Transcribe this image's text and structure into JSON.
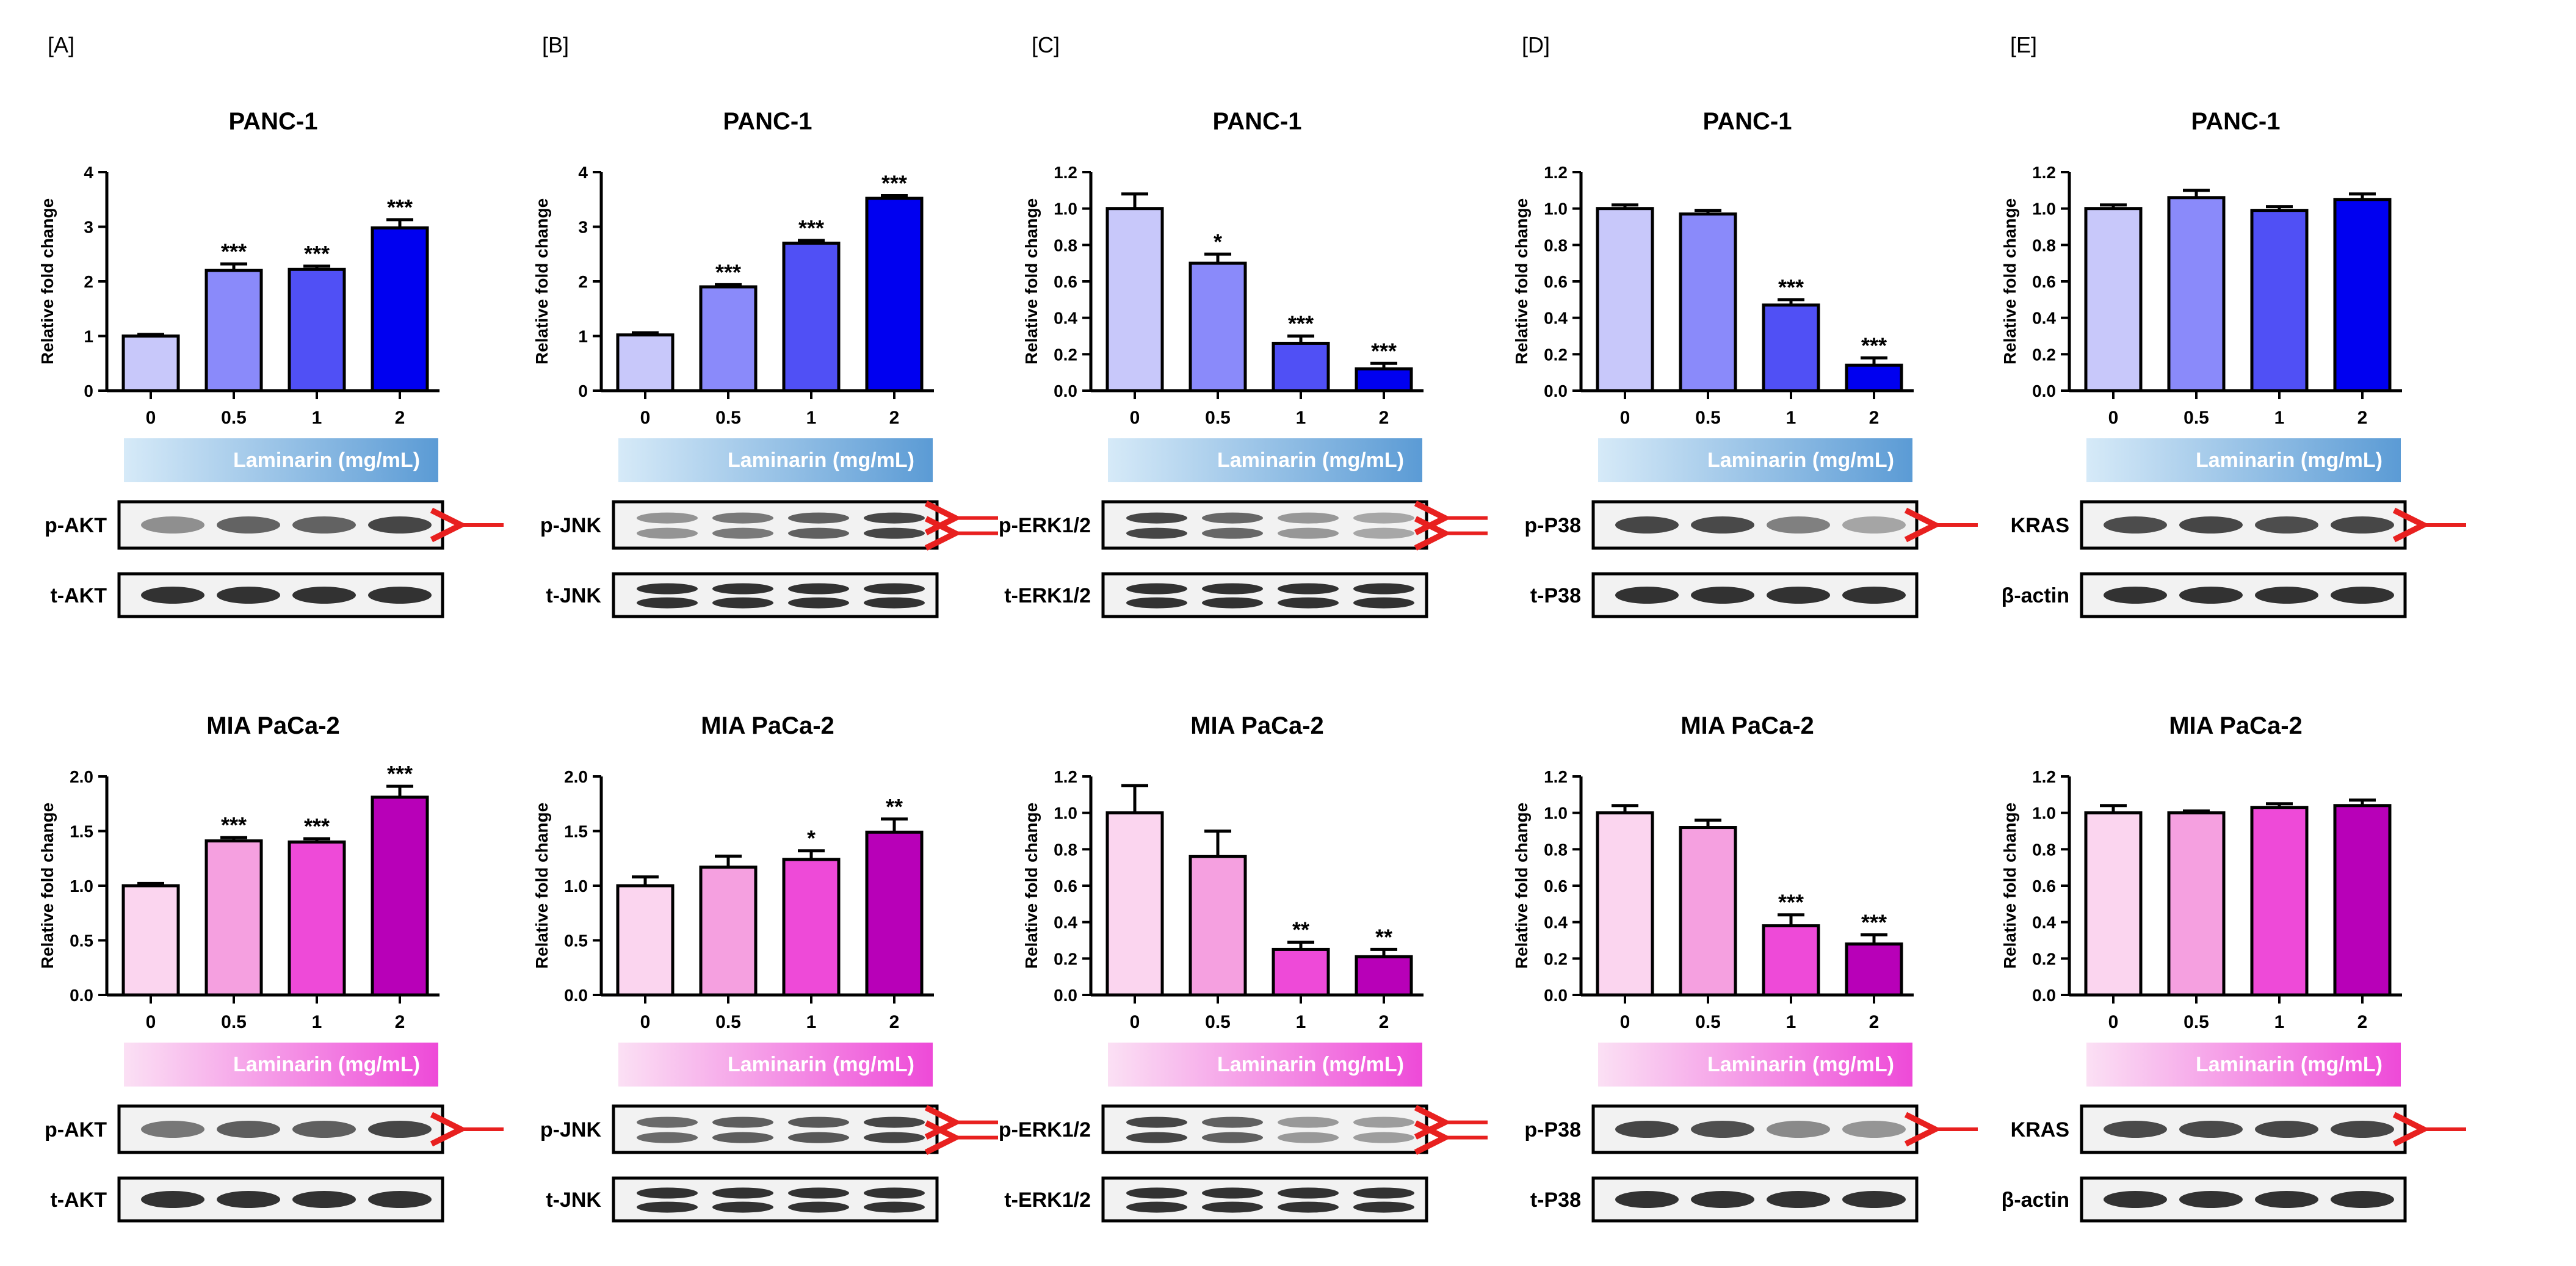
{
  "chart_data": [
    {
      "type": "bar",
      "panel": "[A]",
      "title": "PANC-1",
      "ylabel": "Relative fold change",
      "xlabel": "",
      "categories": [
        "0",
        "0.5",
        "1",
        "2"
      ],
      "values": [
        1.0,
        2.2,
        2.22,
        2.98
      ],
      "errors": [
        0.03,
        0.12,
        0.06,
        0.15
      ],
      "significance": [
        "",
        "***",
        "***",
        "***"
      ],
      "ylim": [
        0,
        4
      ],
      "yticks": [
        "0",
        "1",
        "2",
        "3",
        "4"
      ],
      "colors": [
        "#c8c8fa",
        "#8a8afa",
        "#5050f5",
        "#0000f0"
      ],
      "treatment_label": "Laminarin (mg/mL)",
      "treatment_colors": [
        "#d6eaf8",
        "#5b9bd5"
      ],
      "blots": [
        {
          "label": "p-AKT",
          "bands": "single",
          "arrows": 1
        },
        {
          "label": "t-AKT",
          "bands": "single",
          "arrows": 0
        }
      ]
    },
    {
      "type": "bar",
      "panel": "[B]",
      "title": "PANC-1",
      "ylabel": "Relative fold change",
      "xlabel": "",
      "categories": [
        "0",
        "0.5",
        "1",
        "2"
      ],
      "values": [
        1.02,
        1.9,
        2.7,
        3.52
      ],
      "errors": [
        0.04,
        0.04,
        0.05,
        0.05
      ],
      "significance": [
        "",
        "***",
        "***",
        "***"
      ],
      "ylim": [
        0,
        4
      ],
      "yticks": [
        "0",
        "1",
        "2",
        "3",
        "4"
      ],
      "colors": [
        "#c8c8fa",
        "#8a8afa",
        "#5050f5",
        "#0000f0"
      ],
      "treatment_label": "Laminarin (mg/mL)",
      "treatment_colors": [
        "#d6eaf8",
        "#5b9bd5"
      ],
      "blots": [
        {
          "label": "p-JNK",
          "bands": "double",
          "arrows": 2
        },
        {
          "label": "t-JNK",
          "bands": "double",
          "arrows": 0
        }
      ]
    },
    {
      "type": "bar",
      "panel": "[C]",
      "title": "PANC-1",
      "ylabel": "Relative fold change",
      "xlabel": "",
      "categories": [
        "0",
        "0.5",
        "1",
        "2"
      ],
      "values": [
        1.0,
        0.7,
        0.26,
        0.12
      ],
      "errors": [
        0.08,
        0.05,
        0.04,
        0.03
      ],
      "significance": [
        "",
        "*",
        "***",
        "***"
      ],
      "ylim": [
        0,
        1.2
      ],
      "yticks": [
        "0.0",
        "0.2",
        "0.4",
        "0.6",
        "0.8",
        "1.0",
        "1.2"
      ],
      "colors": [
        "#c8c8fa",
        "#8a8afa",
        "#5050f5",
        "#0000f0"
      ],
      "treatment_label": "Laminarin (mg/mL)",
      "treatment_colors": [
        "#d6eaf8",
        "#5b9bd5"
      ],
      "blots": [
        {
          "label": "p-ERK1/2",
          "bands": "double",
          "arrows": 2
        },
        {
          "label": "t-ERK1/2",
          "bands": "double",
          "arrows": 0
        }
      ]
    },
    {
      "type": "bar",
      "panel": "[D]",
      "title": "PANC-1",
      "ylabel": "Relative fold change",
      "xlabel": "",
      "categories": [
        "0",
        "0.5",
        "1",
        "2"
      ],
      "values": [
        1.0,
        0.97,
        0.47,
        0.14
      ],
      "errors": [
        0.02,
        0.02,
        0.03,
        0.04
      ],
      "significance": [
        "",
        "",
        "***",
        "***"
      ],
      "ylim": [
        0,
        1.2
      ],
      "yticks": [
        "0.0",
        "0.2",
        "0.4",
        "0.6",
        "0.8",
        "1.0",
        "1.2"
      ],
      "colors": [
        "#c8c8fa",
        "#8a8afa",
        "#5050f5",
        "#0000f0"
      ],
      "treatment_label": "Laminarin (mg/mL)",
      "treatment_colors": [
        "#d6eaf8",
        "#5b9bd5"
      ],
      "blots": [
        {
          "label": "p-P38",
          "bands": "single",
          "arrows": 1
        },
        {
          "label": "t-P38",
          "bands": "single",
          "arrows": 0
        }
      ]
    },
    {
      "type": "bar",
      "panel": "[E]",
      "title": "PANC-1",
      "ylabel": "Relative fold change",
      "xlabel": "",
      "categories": [
        "0",
        "0.5",
        "1",
        "2"
      ],
      "values": [
        1.0,
        1.06,
        0.99,
        1.05
      ],
      "errors": [
        0.02,
        0.04,
        0.02,
        0.03
      ],
      "significance": [
        "",
        "",
        "",
        ""
      ],
      "ylim": [
        0,
        1.2
      ],
      "yticks": [
        "0.0",
        "0.2",
        "0.4",
        "0.6",
        "0.8",
        "1.0",
        "1.2"
      ],
      "colors": [
        "#c8c8fa",
        "#8a8afa",
        "#5050f5",
        "#0000f0"
      ],
      "treatment_label": "Laminarin (mg/mL)",
      "treatment_colors": [
        "#d6eaf8",
        "#5b9bd5"
      ],
      "blots": [
        {
          "label": "KRAS",
          "bands": "single",
          "arrows": 1
        },
        {
          "label": "β-actin",
          "bands": "single",
          "arrows": 0
        }
      ]
    },
    {
      "type": "bar",
      "panel": "",
      "title": "MIA PaCa-2",
      "ylabel": "Relative fold change",
      "xlabel": "",
      "categories": [
        "0",
        "0.5",
        "1",
        "2"
      ],
      "values": [
        1.0,
        1.41,
        1.4,
        1.81
      ],
      "errors": [
        0.02,
        0.03,
        0.03,
        0.1
      ],
      "significance": [
        "",
        "***",
        "***",
        "***"
      ],
      "ylim": [
        0,
        2.0
      ],
      "yticks": [
        "0.0",
        "0.5",
        "1.0",
        "1.5",
        "2.0"
      ],
      "colors": [
        "#fbd5ef",
        "#f5a0e0",
        "#ee4ad8",
        "#b800b8"
      ],
      "treatment_label": "Laminarin (mg/mL)",
      "treatment_colors": [
        "#fbe0f4",
        "#ee4ad8"
      ],
      "blots": [
        {
          "label": "p-AKT",
          "bands": "single",
          "arrows": 1
        },
        {
          "label": "t-AKT",
          "bands": "single",
          "arrows": 0
        }
      ]
    },
    {
      "type": "bar",
      "panel": "",
      "title": "MIA PaCa-2",
      "ylabel": "Relative fold change",
      "xlabel": "",
      "categories": [
        "0",
        "0.5",
        "1",
        "2"
      ],
      "values": [
        1.0,
        1.17,
        1.24,
        1.49
      ],
      "errors": [
        0.08,
        0.1,
        0.08,
        0.12
      ],
      "significance": [
        "",
        "",
        "*",
        "**"
      ],
      "ylim": [
        0,
        2.0
      ],
      "yticks": [
        "0.0",
        "0.5",
        "1.0",
        "1.5",
        "2.0"
      ],
      "colors": [
        "#fbd5ef",
        "#f5a0e0",
        "#ee4ad8",
        "#b800b8"
      ],
      "treatment_label": "Laminarin (mg/mL)",
      "treatment_colors": [
        "#fbe0f4",
        "#ee4ad8"
      ],
      "blots": [
        {
          "label": "p-JNK",
          "bands": "double",
          "arrows": 2
        },
        {
          "label": "t-JNK",
          "bands": "double",
          "arrows": 0
        }
      ]
    },
    {
      "type": "bar",
      "panel": "",
      "title": "MIA PaCa-2",
      "ylabel": "Relative fold change",
      "xlabel": "",
      "categories": [
        "0",
        "0.5",
        "1",
        "2"
      ],
      "values": [
        1.0,
        0.76,
        0.25,
        0.21
      ],
      "errors": [
        0.15,
        0.14,
        0.04,
        0.04
      ],
      "significance": [
        "",
        "",
        "**",
        "**"
      ],
      "ylim": [
        0,
        1.2
      ],
      "yticks": [
        "0.0",
        "0.2",
        "0.4",
        "0.6",
        "0.8",
        "1.0",
        "1.2"
      ],
      "colors": [
        "#fbd5ef",
        "#f5a0e0",
        "#ee4ad8",
        "#b800b8"
      ],
      "treatment_label": "Laminarin (mg/mL)",
      "treatment_colors": [
        "#fbe0f4",
        "#ee4ad8"
      ],
      "blots": [
        {
          "label": "p-ERK1/2",
          "bands": "double",
          "arrows": 2
        },
        {
          "label": "t-ERK1/2",
          "bands": "double",
          "arrows": 0
        }
      ]
    },
    {
      "type": "bar",
      "panel": "",
      "title": "MIA PaCa-2",
      "ylabel": "Relative fold change",
      "xlabel": "",
      "categories": [
        "0",
        "0.5",
        "1",
        "2"
      ],
      "values": [
        1.0,
        0.92,
        0.38,
        0.28
      ],
      "errors": [
        0.04,
        0.04,
        0.06,
        0.05
      ],
      "significance": [
        "",
        "",
        "***",
        "***"
      ],
      "ylim": [
        0,
        1.2
      ],
      "yticks": [
        "0.0",
        "0.2",
        "0.4",
        "0.6",
        "0.8",
        "1.0",
        "1.2"
      ],
      "colors": [
        "#fbd5ef",
        "#f5a0e0",
        "#ee4ad8",
        "#b800b8"
      ],
      "treatment_label": "Laminarin (mg/mL)",
      "treatment_colors": [
        "#fbe0f4",
        "#ee4ad8"
      ],
      "blots": [
        {
          "label": "p-P38",
          "bands": "single",
          "arrows": 1
        },
        {
          "label": "t-P38",
          "bands": "single",
          "arrows": 0
        }
      ]
    },
    {
      "type": "bar",
      "panel": "",
      "title": "MIA PaCa-2",
      "ylabel": "Relative fold change",
      "xlabel": "",
      "categories": [
        "0",
        "0.5",
        "1",
        "2"
      ],
      "values": [
        1.0,
        1.0,
        1.03,
        1.04
      ],
      "errors": [
        0.04,
        0.01,
        0.02,
        0.03
      ],
      "significance": [
        "",
        "",
        "",
        ""
      ],
      "ylim": [
        0,
        1.2
      ],
      "yticks": [
        "0.0",
        "0.2",
        "0.4",
        "0.6",
        "0.8",
        "1.0",
        "1.2"
      ],
      "colors": [
        "#fbd5ef",
        "#f5a0e0",
        "#ee4ad8",
        "#b800b8"
      ],
      "treatment_label": "Laminarin (mg/mL)",
      "treatment_colors": [
        "#fbe0f4",
        "#ee4ad8"
      ],
      "blots": [
        {
          "label": "KRAS",
          "bands": "single",
          "arrows": 1
        },
        {
          "label": "β-actin",
          "bands": "single",
          "arrows": 0
        }
      ]
    }
  ]
}
